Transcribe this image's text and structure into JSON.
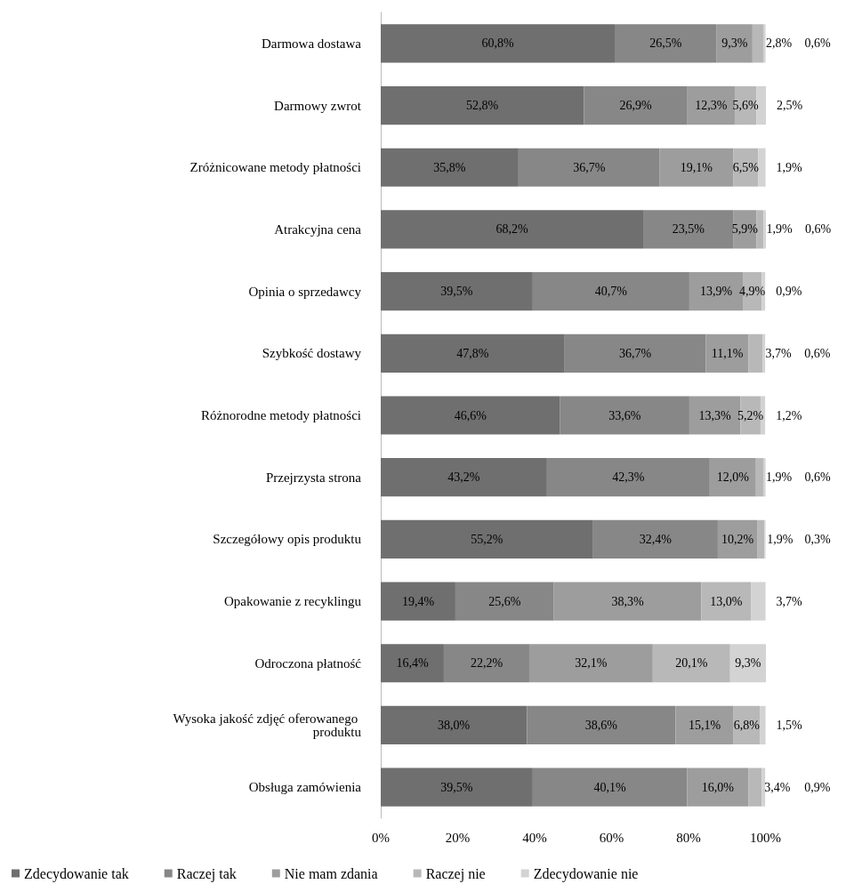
{
  "chart_data": {
    "type": "bar",
    "orientation": "horizontal",
    "stacked": true,
    "legend": "bottom",
    "grid": false,
    "categories": [
      "Darmowa dostawa",
      "Darmowy zwrot",
      "Zróżnicowane metody płatności",
      "Atrakcyjna cena",
      "Opinia o sprzedawcy",
      "Szybkość dostawy",
      "Różnorodne metody płatności",
      "Przejrzysta strona",
      "Szczegółowy opis produktu",
      "Opakowanie z recyklingu",
      "Odroczona płatność",
      "Wysoka jakość zdjęć oferowanego produktu",
      "Obsługa zamówienia"
    ],
    "xlim": [
      0,
      100.1
    ],
    "xticks": [
      {
        "value": 0,
        "label": "0%"
      },
      {
        "value": 20,
        "label": "20%"
      },
      {
        "value": 40,
        "label": "40%"
      },
      {
        "value": 60,
        "label": "60%"
      },
      {
        "value": 80,
        "label": "80%"
      },
      {
        "value": 100,
        "label": "100%"
      }
    ],
    "series": [
      {
        "name": "Zdecydowanie tak",
        "color": "#6f6f6f",
        "values": [
          60.8,
          52.8,
          35.8,
          68.2,
          39.5,
          47.8,
          46.6,
          43.2,
          55.2,
          19.4,
          16.4,
          38.0,
          39.5
        ],
        "value_labels": [
          "60,8%",
          "52,8%",
          "35,8%",
          "68,2%",
          "39,5%",
          "47,8%",
          "46,6%",
          "43,2%",
          "55,2%",
          "19,4%",
          "16,4%",
          "38,0%",
          "39,5%"
        ]
      },
      {
        "name": "Raczej tak",
        "color": "#878787",
        "values": [
          26.5,
          26.9,
          36.7,
          23.5,
          40.7,
          36.7,
          33.6,
          42.3,
          32.4,
          25.6,
          22.2,
          38.6,
          40.1
        ],
        "value_labels": [
          "26,5%",
          "26,9%",
          "36,7%",
          "23,5%",
          "40,7%",
          "36,7%",
          "33,6%",
          "42,3%",
          "32,4%",
          "25,6%",
          "22,2%",
          "38,6%",
          "40,1%"
        ]
      },
      {
        "name": "Nie mam zdania",
        "color": "#9d9d9d",
        "values": [
          9.3,
          12.3,
          19.1,
          5.9,
          13.9,
          11.1,
          13.3,
          12.0,
          10.2,
          38.3,
          32.1,
          15.1,
          16.0
        ],
        "value_labels": [
          "9,3%",
          "12,3%",
          "19,1%",
          "5,9%",
          "13,9%",
          "11,1%",
          "13,3%",
          "12,0%",
          "10,2%",
          "38,3%",
          "32,1%",
          "15,1%",
          "16,0%"
        ]
      },
      {
        "name": "Raczej nie",
        "color": "#b8b8b8",
        "values": [
          2.8,
          5.6,
          6.5,
          1.9,
          4.9,
          3.7,
          5.2,
          1.9,
          1.9,
          13.0,
          20.1,
          6.8,
          3.4
        ],
        "value_labels": [
          "2,8%",
          "5,6%",
          "6,5%",
          "1,9%",
          "4,9%",
          "3,7%",
          "5,2%",
          "1,9%",
          "1,9%",
          "13,0%",
          "20,1%",
          "6,8%",
          "3,4%"
        ]
      },
      {
        "name": "Zdecydowanie nie",
        "color": "#d3d3d3",
        "values": [
          0.6,
          2.5,
          1.9,
          0.6,
          0.9,
          0.6,
          1.2,
          0.6,
          0.3,
          3.7,
          9.3,
          1.5,
          0.9
        ],
        "value_labels": [
          "0,6%",
          "2,5%",
          "1,9%",
          "0,6%",
          "0,9%",
          "0,6%",
          "1,2%",
          "0,6%",
          "0,3%",
          "3,7%",
          "9,3%",
          "1,5%",
          "0,9%"
        ]
      }
    ]
  }
}
